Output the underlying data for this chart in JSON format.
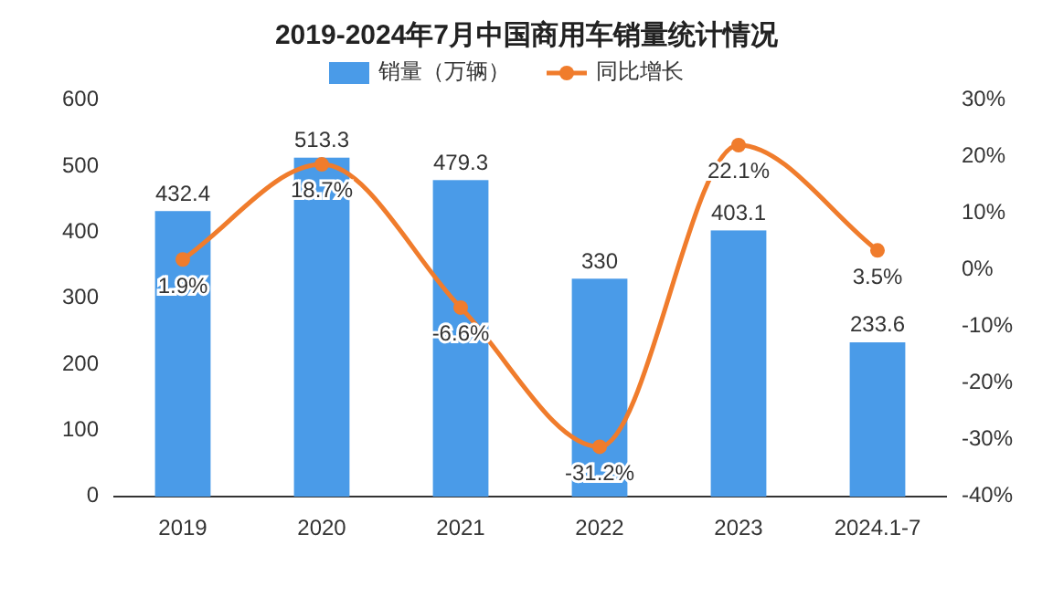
{
  "chart_data": {
    "type": "bar",
    "title": "2019-2024年7月中国商用车销量统计情况",
    "categories": [
      "2019",
      "2020",
      "2021",
      "2022",
      "2023",
      "2024.1-7"
    ],
    "series": [
      {
        "name": "销量（万辆）",
        "color": "#4a9be8",
        "values": [
          432.4,
          513.3,
          479.3,
          330,
          403.1,
          233.6
        ]
      },
      {
        "name": "同比增长",
        "type": "line",
        "axis": "y2",
        "color": "#f07c2c",
        "marker": "circle",
        "values": [
          1.9,
          18.7,
          -6.6,
          -31.2,
          22.1,
          3.5
        ],
        "value_labels": [
          "1.9%",
          "18.7%",
          "-6.6%",
          "-31.2%",
          "22.1%",
          "3.5%"
        ]
      }
    ],
    "data_labels": true,
    "ylim": [
      0,
      600
    ],
    "yticks": [
      0,
      100,
      200,
      300,
      400,
      500,
      600
    ],
    "y2lim": [
      -40,
      30
    ],
    "y2ticks": [
      {
        "value": -40,
        "label": "-40%"
      },
      {
        "value": -30,
        "label": "-30%"
      },
      {
        "value": -20,
        "label": "-20%"
      },
      {
        "value": -10,
        "label": "-10%"
      },
      {
        "value": 0,
        "label": "0%"
      },
      {
        "value": 10,
        "label": "10%"
      },
      {
        "value": 20,
        "label": "20%"
      },
      {
        "value": 30,
        "label": "30%"
      }
    ],
    "legend": "top",
    "grid": false
  }
}
